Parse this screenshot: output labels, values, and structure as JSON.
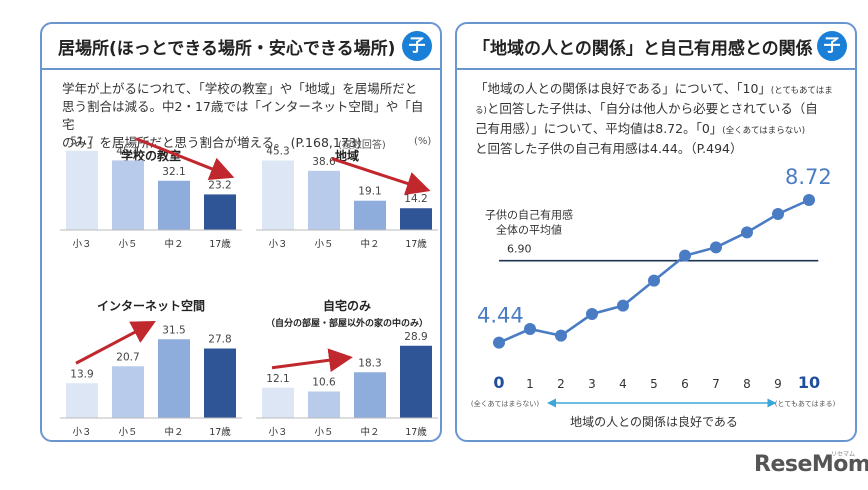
{
  "left": {
    "title": "居場所(ほっとできる場所・安心できる場所)",
    "badge": "子",
    "desc_lines": [
      "学年が上がるにつれて、「学校の教室」や「地域」を居場所だと",
      "思う割合は減る。中2・17歳では「インターネット空間」や「自宅",
      "のみ」を居場所だと思う割合が増える。 (P.168,173)"
    ],
    "unit_note": "(複数回答)",
    "unit": "(%)"
  },
  "right": {
    "title": "「地域の人との関係」と自己有用感との関係",
    "badge": "子",
    "desc": {
      "p1": "「地域の人との関係は良好である」について、「10」",
      "p1s": "(とてもあてはま",
      "p2s": "る)",
      "p2": "と回答した子供は、「自分は他人から必要とされている（自",
      "p3": "己有用感）」について、平均値は8.72。「0」",
      "p3s": "(全くあてはまらない)",
      "p4": "と回答した子供の自己有用感は4.44。（P.494）"
    }
  },
  "chart_data": [
    {
      "type": "bar",
      "title": "学校の教室",
      "categories": [
        "小３",
        "小５",
        "中２",
        "17歳"
      ],
      "values": [
        51.7,
        45.4,
        32.1,
        23.2
      ],
      "value_labels": [
        "51.7",
        "45.4",
        "32.1",
        "23.2"
      ],
      "ylim": [
        0,
        60
      ],
      "colors": [
        "#dce6f5",
        "#b8cbea",
        "#8eacdc",
        "#2f5597"
      ],
      "trend_arrow": "down"
    },
    {
      "type": "bar",
      "title": "地域",
      "categories": [
        "小３",
        "小５",
        "中２",
        "17歳"
      ],
      "values": [
        45.3,
        38.6,
        19.1,
        14.2
      ],
      "value_labels": [
        "45.3",
        "38.6",
        "19.1",
        "14.2"
      ],
      "ylim": [
        0,
        60
      ],
      "colors": [
        "#dce6f5",
        "#b8cbea",
        "#8eacdc",
        "#2f5597"
      ],
      "trend_arrow": "down"
    },
    {
      "type": "bar",
      "title": "インターネット空間",
      "categories": [
        "小３",
        "小５",
        "中２",
        "17歳"
      ],
      "values": [
        13.9,
        20.7,
        31.5,
        27.8
      ],
      "value_labels": [
        "13.9",
        "20.7",
        "31.5",
        "27.8"
      ],
      "ylim": [
        0,
        40
      ],
      "colors": [
        "#dce6f5",
        "#b8cbea",
        "#8eacdc",
        "#2f5597"
      ],
      "trend_arrow": "up"
    },
    {
      "type": "bar",
      "title": "自宅のみ",
      "subtitle": "（自分の部屋・部屋以外の家の中のみ）",
      "categories": [
        "小３",
        "小５",
        "中２",
        "17歳"
      ],
      "values": [
        12.1,
        10.6,
        18.3,
        28.9
      ],
      "value_labels": [
        "12.1",
        "10.6",
        "18.3",
        "28.9"
      ],
      "ylim": [
        0,
        40
      ],
      "colors": [
        "#dce6f5",
        "#b8cbea",
        "#8eacdc",
        "#2f5597"
      ],
      "trend_arrow": "up"
    },
    {
      "type": "line",
      "x": [
        0,
        1,
        2,
        3,
        4,
        5,
        6,
        7,
        8,
        9,
        10
      ],
      "tick_labels": [
        "0",
        "1",
        "2",
        "3",
        "4",
        "5",
        "6",
        "7",
        "8",
        "9",
        "10"
      ],
      "y": [
        4.44,
        4.85,
        4.65,
        5.3,
        5.55,
        6.3,
        7.05,
        7.3,
        7.75,
        8.3,
        8.72
      ],
      "ylim": [
        3.5,
        9.5
      ],
      "color": "#4a7cc4",
      "start_label": "4.44",
      "end_label": "8.72",
      "reference_line": {
        "value": 6.9,
        "label_lines": [
          "子供の自己有用感",
          "全体の平均値"
        ],
        "value_label": "6.90"
      },
      "x_left_note": "(全くあてはまらない)",
      "x_right_note": "(とてもあてはまる)",
      "xlabel": "地域の人との関係は良好である"
    }
  ],
  "logo": {
    "text": "ReseMom",
    "small": "リセマム"
  }
}
